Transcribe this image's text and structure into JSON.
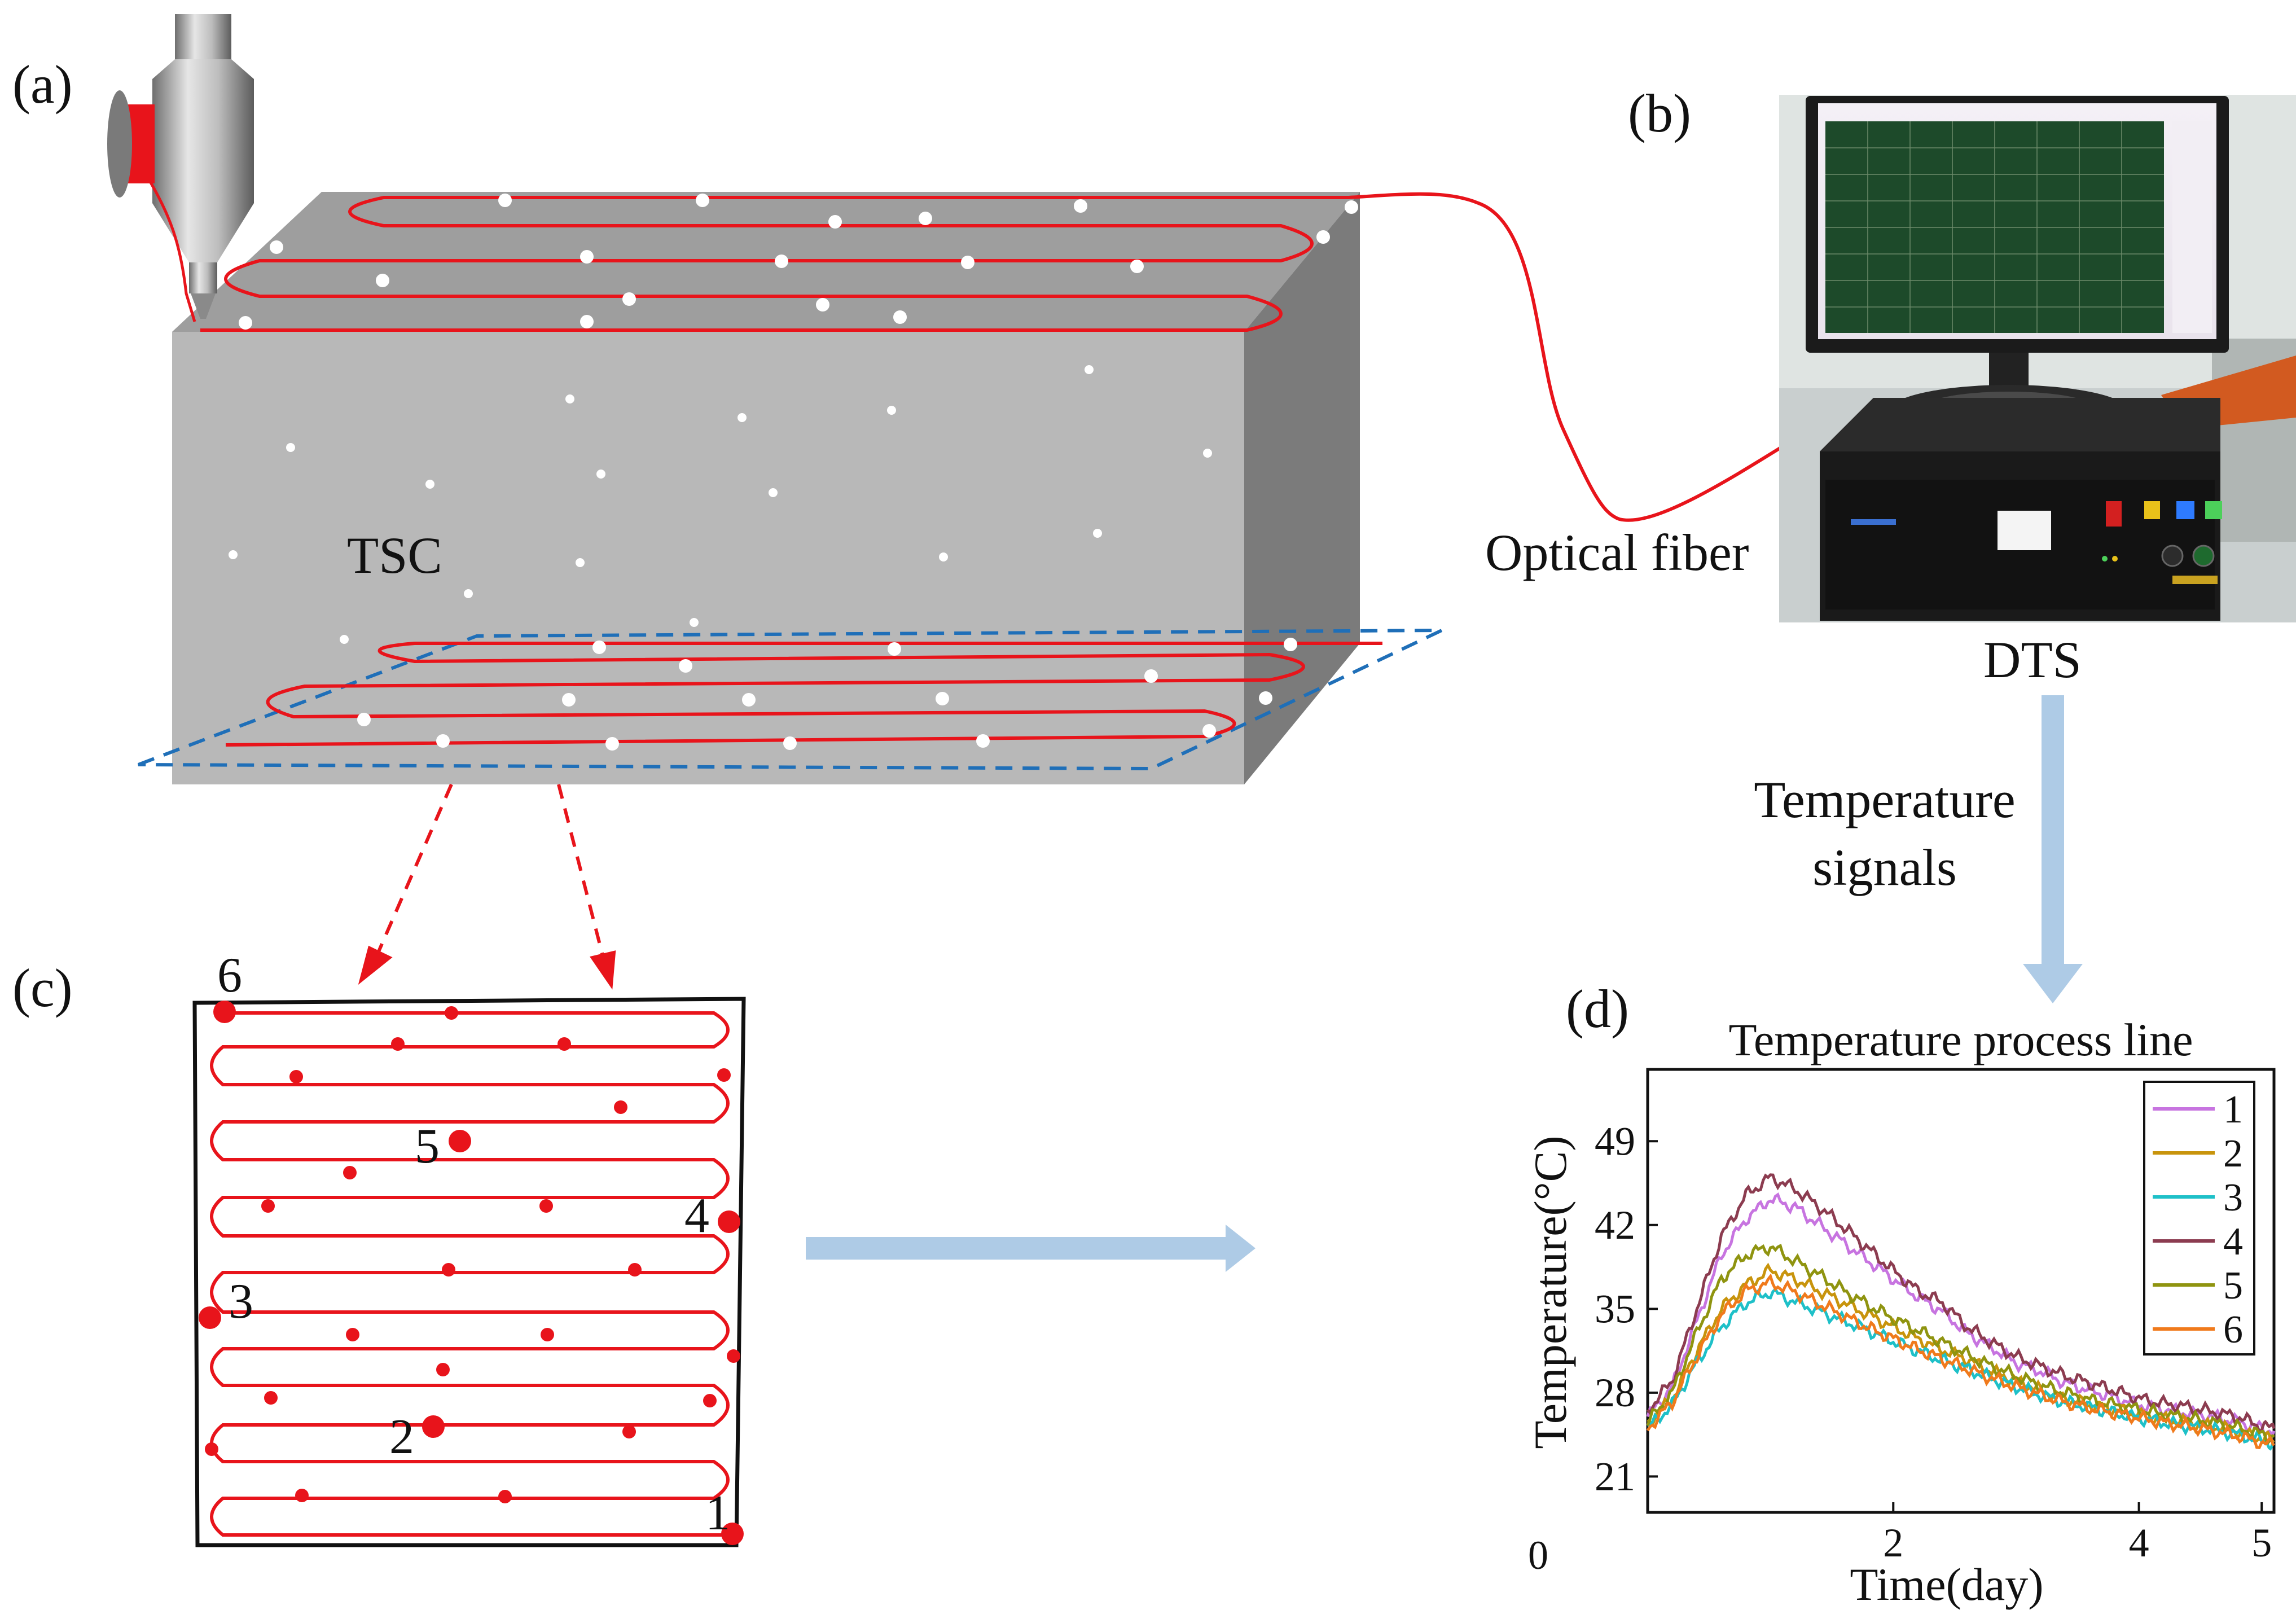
{
  "panels": {
    "a": "(a)",
    "b": "(b)",
    "c": "(c)",
    "d": "(d)"
  },
  "labels": {
    "block": "TSC",
    "fiber": "Optical fiber",
    "device": "DTS",
    "signals_line1": "Temperature",
    "signals_line2": "signals"
  },
  "points": [
    "1",
    "2",
    "3",
    "4",
    "5",
    "6"
  ],
  "colors": {
    "fiber": "#e8141b",
    "section": "#1f6fb8",
    "arrow": "#aecbe6",
    "block_front": "#b7b7b7",
    "block_top": "#9c9c9c",
    "block_side": "#7a7a7a"
  },
  "chart_data": {
    "type": "line",
    "title": "Temperature process line",
    "xlabel": "Time(day)",
    "ylabel": "Temperature(°C)",
    "origin_label": "0",
    "xlim": [
      0,
      5.1
    ],
    "ylim": [
      18,
      55
    ],
    "xticks": [
      2,
      4,
      5
    ],
    "yticks": [
      21,
      28,
      35,
      42,
      49
    ],
    "series": [
      {
        "name": "1",
        "color": "#c774e0",
        "x": [
          0,
          0.2,
          0.4,
          0.6,
          0.8,
          1.0,
          1.2,
          1.4,
          1.6,
          1.8,
          2.0,
          2.2,
          2.4,
          2.6,
          2.8,
          3.0,
          3.2,
          3.4,
          3.6,
          3.8,
          4.0,
          4.2,
          4.4,
          4.6,
          4.8,
          5.0,
          5.1
        ],
        "y": [
          26,
          28.5,
          34,
          39.5,
          42.5,
          44.2,
          43.5,
          42,
          40.5,
          39,
          37.5,
          36,
          34.8,
          33,
          31.8,
          30.5,
          29.8,
          28.8,
          28.2,
          27.6,
          27,
          26.6,
          26.3,
          26,
          25.6,
          25,
          24.8
        ]
      },
      {
        "name": "2",
        "color": "#c8940c",
        "x": [
          0,
          0.2,
          0.4,
          0.6,
          0.8,
          1.0,
          1.2,
          1.4,
          1.6,
          1.8,
          2.0,
          2.2,
          2.4,
          2.6,
          2.8,
          3.0,
          3.2,
          3.4,
          3.6,
          3.8,
          4.0,
          4.2,
          4.4,
          4.6,
          4.8,
          5.0,
          5.1
        ],
        "y": [
          25.5,
          27.5,
          31.5,
          35,
          37,
          38.2,
          37.5,
          36.5,
          35.5,
          34.5,
          33.5,
          32.5,
          31.6,
          30.8,
          29.8,
          29,
          28.2,
          27.5,
          27,
          26.6,
          26.2,
          25.8,
          25.5,
          25.2,
          24.8,
          24.2,
          24
        ]
      },
      {
        "name": "3",
        "color": "#1ec0c8",
        "x": [
          0,
          0.2,
          0.4,
          0.6,
          0.8,
          1.0,
          1.2,
          1.4,
          1.6,
          1.8,
          2.0,
          2.2,
          2.4,
          2.6,
          2.8,
          3.0,
          3.2,
          3.4,
          3.6,
          3.8,
          4.0,
          4.2,
          4.4,
          4.6,
          4.8,
          5.0,
          5.1
        ],
        "y": [
          25,
          27,
          30.5,
          33.5,
          35.5,
          36.4,
          35.6,
          34.8,
          34,
          33.2,
          32.3,
          31.5,
          30.7,
          30,
          29.2,
          28.5,
          27.8,
          27.2,
          26.8,
          26.3,
          25.9,
          25.5,
          25.2,
          24.9,
          24.5,
          24,
          23.8
        ]
      },
      {
        "name": "4",
        "color": "#8c3c50",
        "x": [
          0,
          0.2,
          0.4,
          0.6,
          0.8,
          1.0,
          1.2,
          1.4,
          1.6,
          1.8,
          2.0,
          2.2,
          2.4,
          2.6,
          2.8,
          3.0,
          3.2,
          3.4,
          3.6,
          3.8,
          4.0,
          4.2,
          4.4,
          4.6,
          4.8,
          5.0,
          5.1
        ],
        "y": [
          26.5,
          29,
          35,
          41,
          44.5,
          46,
          45,
          43.5,
          41.8,
          40,
          38.2,
          36.5,
          35.5,
          33.5,
          32.2,
          31,
          30.2,
          29.4,
          28.8,
          28.2,
          27.5,
          27.1,
          26.8,
          26.4,
          26,
          25.2,
          25
        ]
      },
      {
        "name": "5",
        "color": "#8f9410",
        "x": [
          0,
          0.2,
          0.4,
          0.6,
          0.8,
          1.0,
          1.2,
          1.4,
          1.6,
          1.8,
          2.0,
          2.2,
          2.4,
          2.6,
          2.8,
          3.0,
          3.2,
          3.4,
          3.6,
          3.8,
          4.0,
          4.2,
          4.4,
          4.6,
          4.8,
          5.0,
          5.1
        ],
        "y": [
          25.5,
          28,
          33,
          37.5,
          39.5,
          40.2,
          39,
          37.8,
          36.5,
          35.3,
          34.2,
          33.2,
          32.2,
          31.2,
          30.2,
          29.4,
          28.6,
          28,
          27.4,
          27,
          26.6,
          26.2,
          25.9,
          25.5,
          25.1,
          24.5,
          24.3
        ]
      },
      {
        "name": "6",
        "color": "#f07a1c",
        "x": [
          0,
          0.2,
          0.4,
          0.6,
          0.8,
          1.0,
          1.2,
          1.4,
          1.6,
          1.8,
          2.0,
          2.2,
          2.4,
          2.6,
          2.8,
          3.0,
          3.2,
          3.4,
          3.6,
          3.8,
          4.0,
          4.2,
          4.4,
          4.6,
          4.8,
          5.0,
          5.1
        ],
        "y": [
          25,
          27.2,
          31,
          34.5,
          36.5,
          37.2,
          36.4,
          35.4,
          34.4,
          33.4,
          32.5,
          31.6,
          30.8,
          30,
          29.2,
          28.5,
          27.8,
          27.2,
          26.7,
          26.3,
          25.9,
          25.5,
          25.2,
          24.8,
          24.4,
          23.8,
          23.6
        ]
      }
    ]
  }
}
